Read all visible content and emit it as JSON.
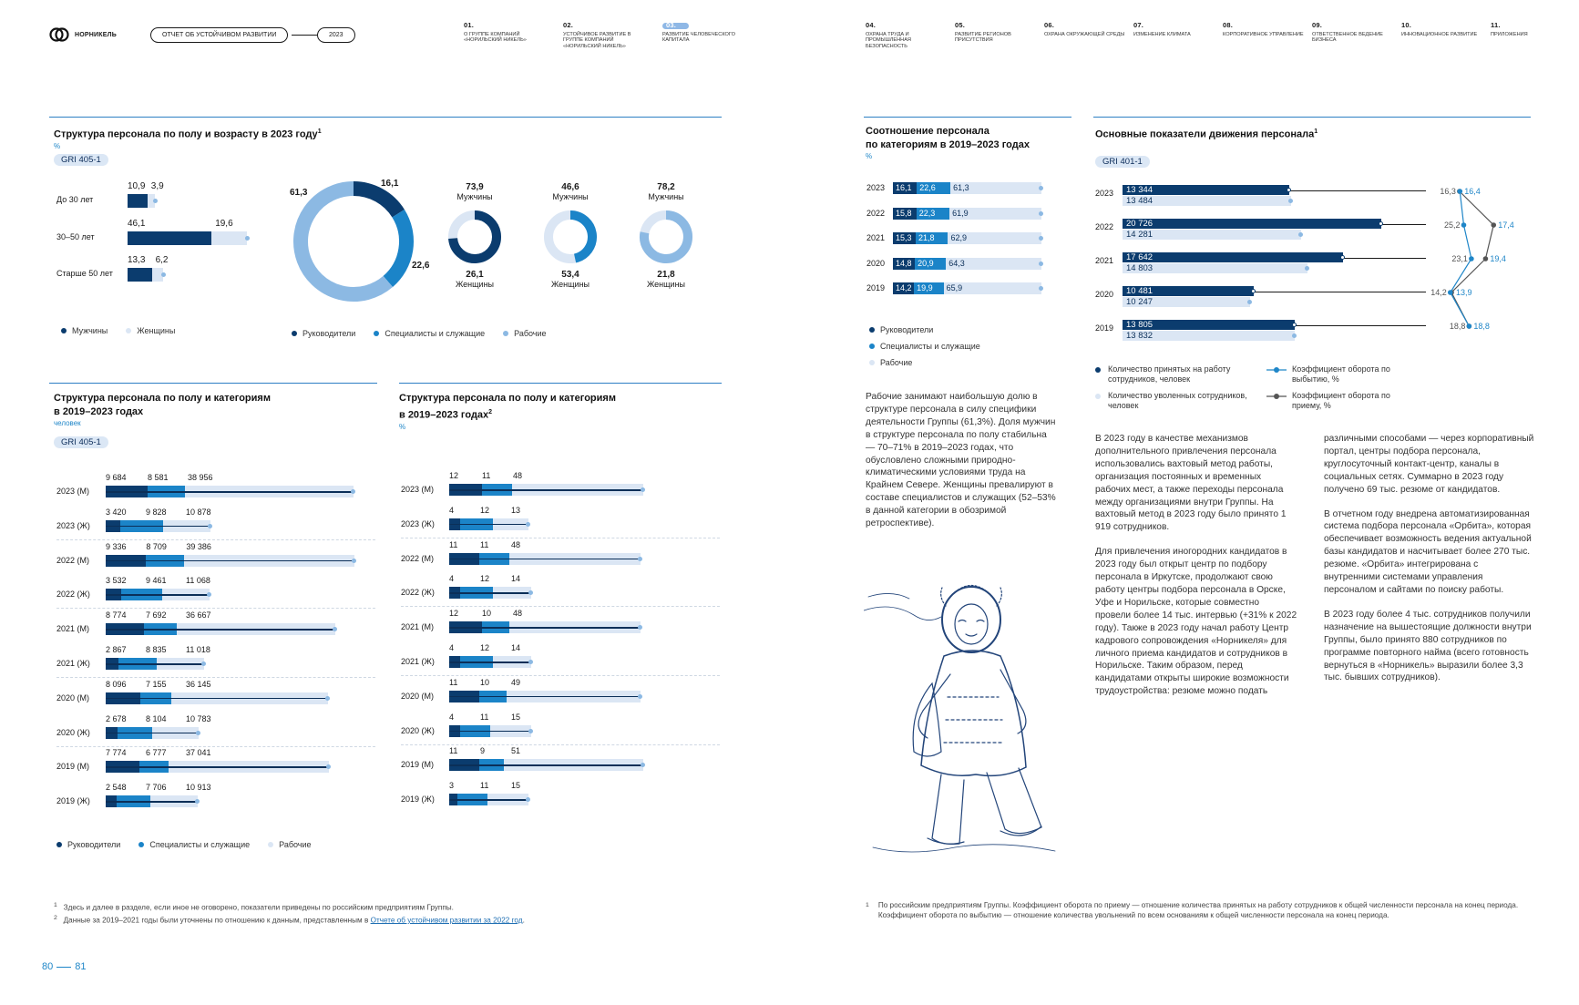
{
  "header": {
    "logo_text": "НОРНИКЕЛЬ",
    "report_label": "ОТЧЕТ ОБ УСТОЙЧИВОМ РАЗВИТИИ",
    "year": "2023",
    "nav": [
      {
        "num": "01.",
        "text": "О Группе компаний «Норильский никель»"
      },
      {
        "num": "02.",
        "text": "Устойчивое развитие в Группе компаний «Норильский никель»"
      },
      {
        "num": "03.",
        "text": "Развитие человеческого капитала"
      },
      {
        "num": "04.",
        "text": "Охрана труда и промышленная безопасность"
      },
      {
        "num": "05.",
        "text": "Развитие регионов присутствия"
      },
      {
        "num": "06.",
        "text": "Охрана окружающей среды"
      },
      {
        "num": "07.",
        "text": "Изменение климата"
      },
      {
        "num": "08.",
        "text": "Корпоративное управление"
      },
      {
        "num": "09.",
        "text": "Ответственное ведение бизнеса"
      },
      {
        "num": "10.",
        "text": "Инновационное развитие"
      },
      {
        "num": "11.",
        "text": "Приложения"
      }
    ]
  },
  "colors": {
    "dark": "#0b3c6e",
    "mid": "#1b84c8",
    "light": "#dbe6f4",
    "accent": "#1f86c8"
  },
  "age_chart": {
    "title": "Структура персонала по полу и возрасту в 2023 году",
    "sup": "1",
    "unit": "%",
    "gri": "GRI 405-1",
    "rows": [
      {
        "label": "До 30 лет",
        "men": "10,9",
        "women": "3,9"
      },
      {
        "label": "30–50 лет",
        "men": "46,1",
        "women": "19,6"
      },
      {
        "label": "Старше 50 лет",
        "men": "13,3",
        "women": "6,2"
      }
    ],
    "legend": [
      "Мужчины",
      "Женщины"
    ]
  },
  "category_donut": {
    "values": [
      "16,1",
      "22,6",
      "61,3"
    ],
    "legend": [
      "Руководители",
      "Специалисты и служащие",
      "Рабочие"
    ]
  },
  "gender_pies": [
    {
      "men": "73,9",
      "women": "26,1",
      "men_label": "Мужчины",
      "women_label": "Женщины"
    },
    {
      "men": "46,6",
      "women": "53,4",
      "men_label": "Мужчины",
      "women_label": "Женщины"
    },
    {
      "men": "78,2",
      "women": "21,8",
      "men_label": "Мужчины",
      "women_label": "Женщины"
    }
  ],
  "cat_abs": {
    "title_1": "Структура персонала по полу и категориям",
    "title_2": "в 2019–2023 годах",
    "unit": "человек",
    "gri": "GRI 405-1",
    "rows": [
      {
        "label": "2023 (М)",
        "v": [
          "9 684",
          "8 581",
          "38 956"
        ]
      },
      {
        "label": "2023 (Ж)",
        "v": [
          "3 420",
          "9 828",
          "10 878"
        ]
      },
      {
        "label": "2022 (М)",
        "v": [
          "9 336",
          "8 709",
          "39 386"
        ]
      },
      {
        "label": "2022 (Ж)",
        "v": [
          "3 532",
          "9 461",
          "11 068"
        ]
      },
      {
        "label": "2021 (М)",
        "v": [
          "8 774",
          "7 692",
          "36 667"
        ]
      },
      {
        "label": "2021 (Ж)",
        "v": [
          "2 867",
          "8 835",
          "11 018"
        ]
      },
      {
        "label": "2020 (М)",
        "v": [
          "8 096",
          "7 155",
          "36 145"
        ]
      },
      {
        "label": "2020 (Ж)",
        "v": [
          "2 678",
          "8 104",
          "10 783"
        ]
      },
      {
        "label": "2019 (М)",
        "v": [
          "7 774",
          "6 777",
          "37 041"
        ]
      },
      {
        "label": "2019 (Ж)",
        "v": [
          "2 548",
          "7 706",
          "10 913"
        ]
      }
    ],
    "legend": [
      "Руководители",
      "Специалисты и служащие",
      "Рабочие"
    ]
  },
  "cat_pct": {
    "title_1": "Структура персонала по полу и категориям",
    "title_2": "в 2019–2023 годах",
    "sup": "2",
    "unit": "%",
    "rows": [
      {
        "label": "2023 (М)",
        "v": [
          "12",
          "11",
          "48"
        ]
      },
      {
        "label": "2023 (Ж)",
        "v": [
          "4",
          "12",
          "13"
        ]
      },
      {
        "label": "2022 (М)",
        "v": [
          "11",
          "11",
          "48"
        ]
      },
      {
        "label": "2022 (Ж)",
        "v": [
          "4",
          "12",
          "14"
        ]
      },
      {
        "label": "2021 (М)",
        "v": [
          "12",
          "10",
          "48"
        ]
      },
      {
        "label": "2021 (Ж)",
        "v": [
          "4",
          "12",
          "14"
        ]
      },
      {
        "label": "2020 (М)",
        "v": [
          "11",
          "10",
          "49"
        ]
      },
      {
        "label": "2020 (Ж)",
        "v": [
          "4",
          "11",
          "15"
        ]
      },
      {
        "label": "2019 (М)",
        "v": [
          "11",
          "9",
          "51"
        ]
      },
      {
        "label": "2019 (Ж)",
        "v": [
          "3",
          "11",
          "15"
        ]
      }
    ]
  },
  "ratio_chart": {
    "title_1": "Соотношение персонала",
    "title_2": "по категориям в 2019–2023 годах",
    "unit": "%",
    "rows": [
      {
        "year": "2023",
        "v": [
          "16,1",
          "22,6",
          "61,3"
        ]
      },
      {
        "year": "2022",
        "v": [
          "15,8",
          "22,3",
          "61,9"
        ]
      },
      {
        "year": "2021",
        "v": [
          "15,3",
          "21,8",
          "62,9"
        ]
      },
      {
        "year": "2020",
        "v": [
          "14,8",
          "20,9",
          "64,3"
        ]
      },
      {
        "year": "2019",
        "v": [
          "14,2",
          "19,9",
          "65,9"
        ]
      }
    ],
    "legend": [
      "Руководители",
      "Специалисты и служащие",
      "Рабочие"
    ]
  },
  "movement_chart": {
    "title": "Основные показатели движения персонала",
    "sup": "1",
    "gri": "GRI 401-1",
    "rows": [
      {
        "year": "2023",
        "hired": "13 344",
        "left": "13 484",
        "turnover_exit": "16,3",
        "turnover_hire": "16,4"
      },
      {
        "year": "2022",
        "hired": "20 726",
        "left": "14 281",
        "turnover_exit": "25,2",
        "turnover_hire": "17,4"
      },
      {
        "year": "2021",
        "hired": "17 642",
        "left": "14 803",
        "turnover_exit": "23,1",
        "turnover_hire": "19,4"
      },
      {
        "year": "2020",
        "hired": "10 481",
        "left": "10 247",
        "turnover_exit": "14,2",
        "turnover_hire": "13,9"
      },
      {
        "year": "2019",
        "hired": "13 805",
        "left": "13 832",
        "turnover_exit": "18,8",
        "turnover_hire": "18,8"
      }
    ],
    "legend": [
      "Количество принятых на работу сотрудников, человек",
      "Количество уволенных сотрудников, человек",
      "Коэффициент оборота по выбытию, %",
      "Коэффициент оборота по приему, %"
    ]
  },
  "text_ratio": "Рабочие занимают наибольшую долю в структуре персонала в силу специфики деятельности Группы (61,3%). Доля мужчин в структуре персонала по полу стабильна — 70–71% в 2019–2023 годах, что обусловлено сложными природно-климатическими условиями труда на Крайнем Севере. Женщины превалируют в составе специалистов и служащих (52–53% в данной категории в обозримой ретроспективе).",
  "text_col1": [
    "В 2023 году в качестве механизмов дополнительного привлечения персонала использовались вахтовый метод работы, организация постоянных и временных рабочих мест, а также переходы персонала между организациями внутри Группы. На вахтовый метод в 2023 году было принято 1 919 сотрудников.",
    "Для привлечения иногородних кандидатов в 2023 году был открыт центр по подбору персонала в Иркутске, продолжают свою работу центры подбора персонала в Орске, Уфе и Норильске, которые совместно провели более 14 тыс. интервью (+31% к 2022 году). Также в 2023 году начал работу Центр кадрового сопровождения «Норникеля» для личного приема кандидатов и сотрудников в Норильске. Таким образом, перед кандидатами открыты широкие возможности трудоустройства: резюме можно подать"
  ],
  "text_col2": [
    "различными способами — через корпоративный портал, центры подбора персонала, круглосуточный контакт-центр, каналы в социальных сетях. Суммарно в 2023 году получено 69 тыс. резюме от кандидатов.",
    "В отчетном году внедрена автоматизированная система подбора персонала «Орбита», которая обеспечивает возможность ведения актуальной базы кандидатов и насчитывает более 270 тыс. резюме. «Орбита» интегрирована с внутренними системами управления персоналом и сайтами по поиску работы.",
    "В 2023 году более 4 тыс. сотрудников получили назначение на вышестоящие должности внутри Группы, было принято 880 сотрудников по программе повторного найма (всего готовность вернуться в «Норникель» выразили более 3,3 тыс. бывших сотрудников)."
  ],
  "footnotes_left": [
    {
      "num": "1",
      "text": "Здесь и далее в разделе, если иное не оговорено, показатели приведены по российским предприятиям Группы."
    },
    {
      "num": "2",
      "text": "Данные за 2019–2021 годы были уточнены по отношению к данным, представленным в ",
      "link": "Отчете об устойчивом развитии за 2022 год",
      "after": "."
    }
  ],
  "footnote_right": {
    "num": "1",
    "text": "По российским предприятиям Группы. Коэффициент оборота по приему — отношение количества принятых на работу сотрудников к общей численности персонала на конец периода. Коэффициент оборота по выбытию — отношение количества увольнений по всем основаниям к общей численности персонала на конец периода."
  },
  "page_left": "80",
  "page_right": "81"
}
